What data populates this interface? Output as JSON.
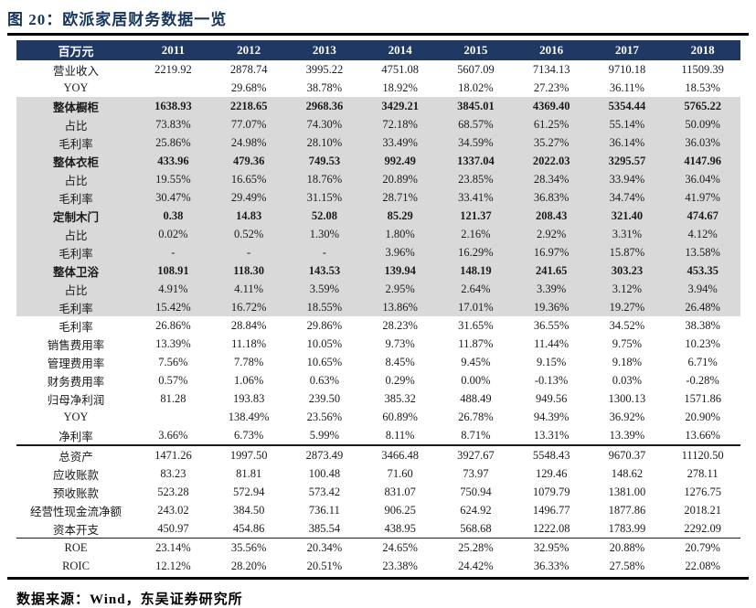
{
  "figure": {
    "title": "图 20：欧派家居财务数据一览",
    "source": "数据来源：Wind，东吴证券研究所"
  },
  "colors": {
    "title_text": "#17365d",
    "header_bg": "#1f3864",
    "header_text": "#ffffff",
    "shaded_row_bg": "#d9d9d9",
    "rule": "#000000"
  },
  "table": {
    "unit_header": "百万元",
    "years": [
      "2011",
      "2012",
      "2013",
      "2014",
      "2015",
      "2016",
      "2017",
      "2018"
    ],
    "rows": [
      {
        "label": "营业收入",
        "values": [
          "2219.92",
          "2878.74",
          "3995.22",
          "4751.08",
          "5607.09",
          "7134.13",
          "9710.18",
          "11509.39"
        ],
        "bold": false,
        "shaded": false,
        "sep": ""
      },
      {
        "label": "YOY",
        "values": [
          "",
          "29.68%",
          "38.78%",
          "18.92%",
          "18.02%",
          "27.23%",
          "36.11%",
          "18.53%"
        ],
        "bold": false,
        "shaded": false,
        "sep": ""
      },
      {
        "label": "整体橱柜",
        "values": [
          "1638.93",
          "2218.65",
          "2968.36",
          "3429.21",
          "3845.01",
          "4369.40",
          "5354.44",
          "5765.22"
        ],
        "bold": true,
        "shaded": true,
        "sep": ""
      },
      {
        "label": "占比",
        "values": [
          "73.83%",
          "77.07%",
          "74.30%",
          "72.18%",
          "68.57%",
          "61.25%",
          "55.14%",
          "50.09%"
        ],
        "bold": false,
        "shaded": true,
        "sep": ""
      },
      {
        "label": "毛利率",
        "values": [
          "25.86%",
          "24.98%",
          "28.10%",
          "33.49%",
          "34.59%",
          "35.27%",
          "36.14%",
          "36.03%"
        ],
        "bold": false,
        "shaded": true,
        "sep": ""
      },
      {
        "label": "整体衣柜",
        "values": [
          "433.96",
          "479.36",
          "749.53",
          "992.49",
          "1337.04",
          "2022.03",
          "3295.57",
          "4147.96"
        ],
        "bold": true,
        "shaded": true,
        "sep": ""
      },
      {
        "label": "占比",
        "values": [
          "19.55%",
          "16.65%",
          "18.76%",
          "20.89%",
          "23.85%",
          "28.34%",
          "33.94%",
          "36.04%"
        ],
        "bold": false,
        "shaded": true,
        "sep": ""
      },
      {
        "label": "毛利率",
        "values": [
          "30.47%",
          "29.49%",
          "31.15%",
          "28.71%",
          "33.41%",
          "36.83%",
          "34.74%",
          "41.97%"
        ],
        "bold": false,
        "shaded": true,
        "sep": ""
      },
      {
        "label": "定制木门",
        "values": [
          "0.38",
          "14.83",
          "52.08",
          "85.29",
          "121.37",
          "208.43",
          "321.40",
          "474.67"
        ],
        "bold": true,
        "shaded": true,
        "sep": ""
      },
      {
        "label": "占比",
        "values": [
          "0.02%",
          "0.52%",
          "1.30%",
          "1.80%",
          "2.16%",
          "2.92%",
          "3.31%",
          "4.12%"
        ],
        "bold": false,
        "shaded": true,
        "sep": ""
      },
      {
        "label": "毛利率",
        "values": [
          "-",
          "-",
          "-",
          "3.96%",
          "16.29%",
          "16.97%",
          "15.87%",
          "13.58%"
        ],
        "bold": false,
        "shaded": true,
        "sep": ""
      },
      {
        "label": "整体卫浴",
        "values": [
          "108.91",
          "118.30",
          "143.53",
          "139.94",
          "148.19",
          "241.65",
          "303.23",
          "453.35"
        ],
        "bold": true,
        "shaded": true,
        "sep": ""
      },
      {
        "label": "占比",
        "values": [
          "4.91%",
          "4.11%",
          "3.59%",
          "2.95%",
          "2.64%",
          "3.39%",
          "3.12%",
          "3.94%"
        ],
        "bold": false,
        "shaded": true,
        "sep": ""
      },
      {
        "label": "毛利率",
        "values": [
          "15.42%",
          "16.72%",
          "18.55%",
          "13.86%",
          "17.01%",
          "19.36%",
          "19.27%",
          "26.48%"
        ],
        "bold": false,
        "shaded": true,
        "sep": ""
      },
      {
        "label": "毛利率",
        "values": [
          "26.86%",
          "28.84%",
          "29.86%",
          "28.23%",
          "31.65%",
          "36.55%",
          "34.52%",
          "38.38%"
        ],
        "bold": false,
        "shaded": false,
        "sep": ""
      },
      {
        "label": "销售费用率",
        "values": [
          "13.39%",
          "11.18%",
          "10.05%",
          "9.73%",
          "11.87%",
          "11.44%",
          "9.75%",
          "10.23%"
        ],
        "bold": false,
        "shaded": false,
        "sep": ""
      },
      {
        "label": "管理费用率",
        "values": [
          "7.56%",
          "7.78%",
          "10.65%",
          "8.45%",
          "9.45%",
          "9.15%",
          "9.18%",
          "6.71%"
        ],
        "bold": false,
        "shaded": false,
        "sep": ""
      },
      {
        "label": "财务费用率",
        "values": [
          "0.57%",
          "1.06%",
          "0.63%",
          "0.29%",
          "0.00%",
          "-0.13%",
          "0.03%",
          "-0.28%"
        ],
        "bold": false,
        "shaded": false,
        "sep": ""
      },
      {
        "label": "归母净利润",
        "values": [
          "81.28",
          "193.83",
          "239.50",
          "385.32",
          "488.49",
          "949.56",
          "1300.13",
          "1571.86"
        ],
        "bold": false,
        "shaded": false,
        "sep": ""
      },
      {
        "label": "YOY",
        "values": [
          "",
          "138.49%",
          "23.56%",
          "60.89%",
          "26.78%",
          "94.39%",
          "36.92%",
          "20.90%"
        ],
        "bold": false,
        "shaded": false,
        "sep": ""
      },
      {
        "label": "净利率",
        "values": [
          "3.66%",
          "6.73%",
          "5.99%",
          "8.11%",
          "8.71%",
          "13.31%",
          "13.39%",
          "13.66%"
        ],
        "bold": false,
        "shaded": false,
        "sep": ""
      },
      {
        "label": "总资产",
        "values": [
          "1471.26",
          "1997.50",
          "2873.49",
          "3466.48",
          "3927.67",
          "5548.43",
          "9670.37",
          "11120.50"
        ],
        "bold": false,
        "shaded": false,
        "sep": "heavy"
      },
      {
        "label": "应收账款",
        "values": [
          "83.23",
          "81.81",
          "100.48",
          "71.60",
          "73.97",
          "129.46",
          "148.62",
          "278.11"
        ],
        "bold": false,
        "shaded": false,
        "sep": ""
      },
      {
        "label": "预收账款",
        "values": [
          "523.28",
          "572.94",
          "573.42",
          "831.07",
          "750.94",
          "1079.79",
          "1381.00",
          "1276.75"
        ],
        "bold": false,
        "shaded": false,
        "sep": ""
      },
      {
        "label": "经营性现金流净额",
        "values": [
          "243.02",
          "384.50",
          "736.11",
          "906.25",
          "624.92",
          "1496.77",
          "1877.86",
          "2018.21"
        ],
        "bold": false,
        "shaded": false,
        "sep": ""
      },
      {
        "label": "资本开支",
        "values": [
          "450.97",
          "454.86",
          "385.54",
          "438.95",
          "568.68",
          "1222.08",
          "1783.99",
          "2292.09"
        ],
        "bold": false,
        "shaded": false,
        "sep": ""
      },
      {
        "label": "ROE",
        "values": [
          "23.14%",
          "35.56%",
          "20.34%",
          "24.65%",
          "25.28%",
          "32.95%",
          "20.88%",
          "20.79%"
        ],
        "bold": false,
        "shaded": false,
        "sep": "light"
      },
      {
        "label": "ROIC",
        "values": [
          "12.12%",
          "28.20%",
          "20.51%",
          "23.38%",
          "24.42%",
          "36.33%",
          "27.58%",
          "22.08%"
        ],
        "bold": false,
        "shaded": false,
        "sep": ""
      }
    ]
  }
}
